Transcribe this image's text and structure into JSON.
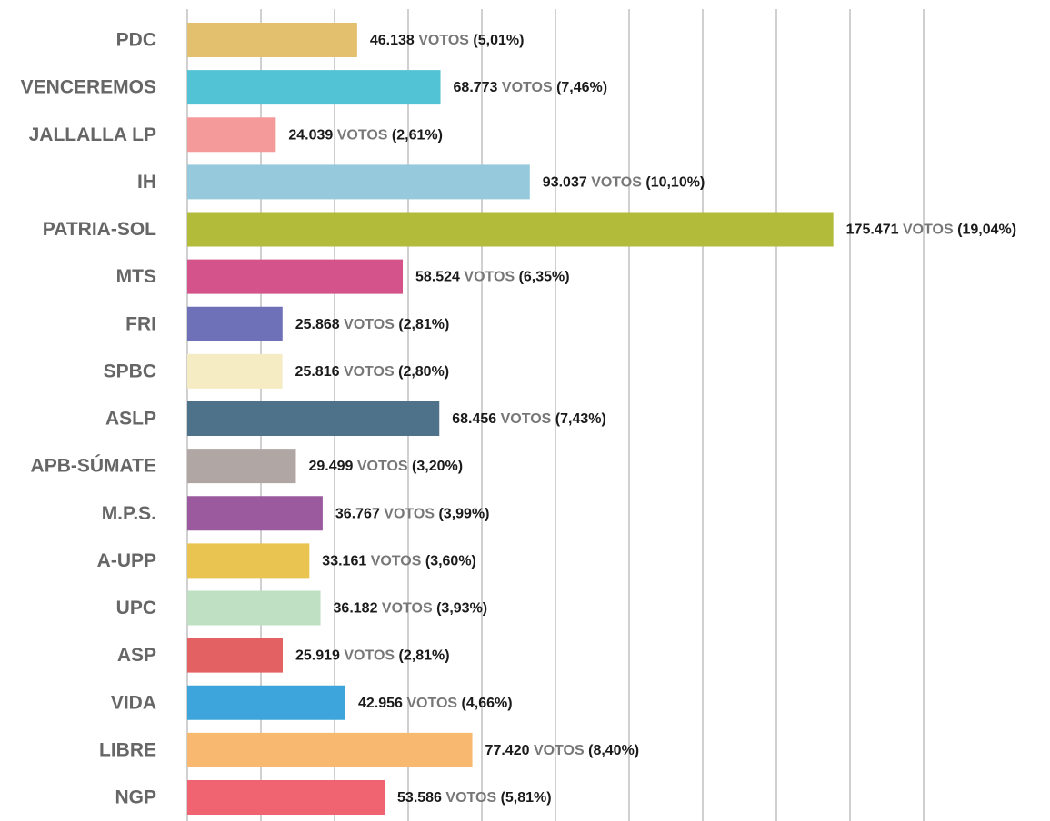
{
  "chart_data": {
    "type": "bar",
    "orientation": "horizontal",
    "categories": [
      "PDC",
      "VENCEREMOS",
      "JALLALLA LP",
      "IH",
      "PATRIA-SOL",
      "MTS",
      "FRI",
      "SPBC",
      "ASLP",
      "APB-SÚMATE",
      "M.P.S.",
      "A-UPP",
      "UPC",
      "ASP",
      "VIDA",
      "LIBRE",
      "NGP"
    ],
    "values": [
      46138,
      68773,
      24039,
      93037,
      175471,
      58524,
      25868,
      25816,
      68456,
      29499,
      36767,
      33161,
      36182,
      25919,
      42956,
      77420,
      53586
    ],
    "value_labels": [
      "46.138",
      "68.773",
      "24.039",
      "93.037",
      "175.471",
      "58.524",
      "25.868",
      "25.816",
      "68.456",
      "29.499",
      "36.767",
      "33.161",
      "36.182",
      "25.919",
      "42.956",
      "77.420",
      "53.586"
    ],
    "unit_label": "VOTOS",
    "percents": [
      5.01,
      7.46,
      2.61,
      10.1,
      19.04,
      6.35,
      2.81,
      2.8,
      7.43,
      3.2,
      3.99,
      3.6,
      3.93,
      2.81,
      4.66,
      8.4,
      5.81
    ],
    "percent_labels": [
      "(5,01%)",
      "(7,46%)",
      "(2,61%)",
      "(10,10%)",
      "(19,04%)",
      "(6,35%)",
      "(2,81%)",
      "(2,80%)",
      "(7,43%)",
      "(3,20%)",
      "(3,99%)",
      "(3,60%)",
      "(3,93%)",
      "(2,81%)",
      "(4,66%)",
      "(8,40%)",
      "(5,81%)"
    ],
    "colors": [
      "#e3c06e",
      "#52c3d5",
      "#f59a9a",
      "#96c9dc",
      "#b3bb3a",
      "#d5538b",
      "#6e70b8",
      "#f6ecc4",
      "#4f728b",
      "#b0a7a4",
      "#9b5a9e",
      "#e9c451",
      "#bfe0c3",
      "#e36063",
      "#3ea5dc",
      "#f9b86f",
      "#ef6470"
    ],
    "xlim": [
      0,
      200000
    ],
    "xticks": [
      0,
      20000,
      40000,
      60000,
      80000,
      100000,
      120000,
      140000,
      160000,
      180000,
      200000
    ],
    "grid": true
  }
}
